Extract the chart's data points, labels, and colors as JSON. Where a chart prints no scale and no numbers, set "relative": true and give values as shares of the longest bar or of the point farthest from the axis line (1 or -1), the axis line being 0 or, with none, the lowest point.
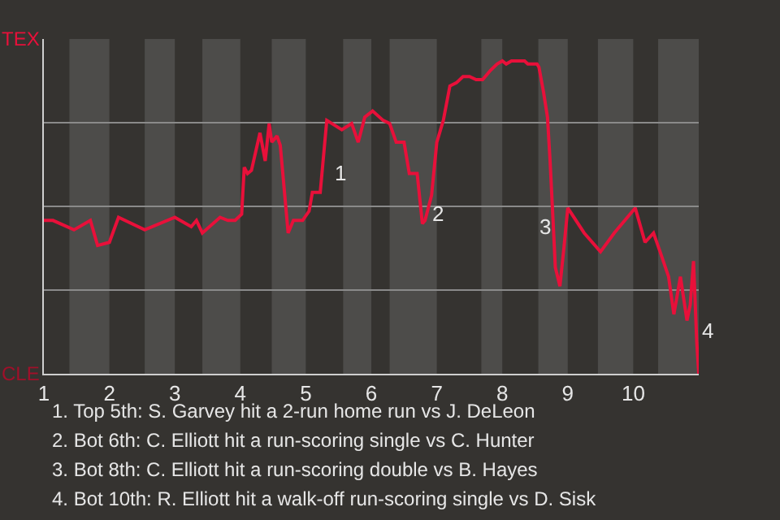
{
  "chart_data": {
    "type": "line",
    "relative": true,
    "x": [
      1.0,
      1.14,
      1.46,
      1.71,
      1.82,
      2.0,
      2.14,
      2.54,
      3.0,
      3.25,
      3.33,
      3.42,
      3.69,
      3.81,
      3.92,
      4.02,
      4.06,
      4.11,
      4.17,
      4.3,
      4.38,
      4.44,
      4.48,
      4.56,
      4.61,
      4.73,
      4.81,
      4.95,
      5.05,
      5.1,
      5.22,
      5.32,
      5.55,
      5.7,
      5.8,
      5.9,
      6.02,
      6.18,
      6.28,
      6.38,
      6.5,
      6.58,
      6.7,
      6.78,
      6.82,
      6.92,
      7.0,
      7.1,
      7.2,
      7.3,
      7.4,
      7.5,
      7.6,
      7.7,
      7.82,
      7.92,
      8.0,
      8.06,
      8.14,
      8.34,
      8.39,
      8.47,
      8.53,
      8.56,
      8.63,
      8.69,
      8.73,
      8.78,
      8.81,
      8.88,
      8.94,
      9.0,
      9.25,
      9.5,
      9.71,
      10.03,
      10.18,
      10.31,
      10.41,
      10.54,
      10.62,
      10.72,
      10.82,
      10.87,
      10.92,
      10.97,
      11.0
    ],
    "series": [
      {
        "color": "#e8103a",
        "values": [
          0.49,
          0.49,
          0.46,
          0.49,
          0.41,
          0.42,
          0.5,
          0.46,
          0.5,
          0.47,
          0.49,
          0.45,
          0.5,
          0.49,
          0.49,
          0.51,
          0.66,
          0.64,
          0.65,
          0.77,
          0.68,
          0.8,
          0.74,
          0.76,
          0.73,
          0.45,
          0.49,
          0.49,
          0.52,
          0.58,
          0.58,
          0.81,
          0.78,
          0.8,
          0.74,
          0.82,
          0.84,
          0.81,
          0.8,
          0.74,
          0.74,
          0.64,
          0.64,
          0.48,
          0.49,
          0.57,
          0.74,
          0.81,
          0.92,
          0.93,
          0.95,
          0.95,
          0.94,
          0.94,
          0.97,
          0.99,
          1,
          0.99,
          1,
          1,
          0.99,
          0.99,
          0.99,
          0.98,
          0.9,
          0.82,
          0.68,
          0.47,
          0.34,
          0.28,
          0.4,
          0.53,
          0.45,
          0.39,
          0.45,
          0.53,
          0.42,
          0.45,
          0.39,
          0.31,
          0.19,
          0.31,
          0.17,
          0.22,
          0.36,
          0.1,
          0
        ]
      }
    ],
    "xlim": [
      1,
      11
    ],
    "xticks": [
      1,
      2,
      3,
      4,
      5,
      6,
      7,
      8,
      9,
      10
    ],
    "grid": "y",
    "bands": [
      {
        "axis": "x",
        "from": 1.39,
        "to": 2,
        "color": "#4d4c4a"
      },
      {
        "axis": "x",
        "from": 2.54,
        "to": 3,
        "color": "#4d4c4a"
      },
      {
        "axis": "x",
        "from": 3.42,
        "to": 4,
        "color": "#4d4c4a"
      },
      {
        "axis": "x",
        "from": 4.48,
        "to": 5,
        "color": "#4d4c4a"
      },
      {
        "axis": "x",
        "from": 5.57,
        "to": 6,
        "color": "#4d4c4a"
      },
      {
        "axis": "x",
        "from": 6.28,
        "to": 7,
        "color": "#4d4c4a"
      },
      {
        "axis": "x",
        "from": 7.68,
        "to": 8,
        "color": "#4d4c4a"
      },
      {
        "axis": "x",
        "from": 8.55,
        "to": 9,
        "color": "#4d4c4a"
      },
      {
        "axis": "x",
        "from": 9.46,
        "to": 10,
        "color": "#4d4c4a"
      },
      {
        "axis": "x",
        "from": 10.38,
        "to": 11,
        "color": "#4d4c4a"
      }
    ],
    "annotations": [
      "TEX",
      "CLE",
      {
        "text": "1",
        "x": 5.4,
        "y": 0.64
      },
      {
        "text": "2",
        "x": 6.88,
        "y": 0.51
      },
      {
        "text": "3",
        "x": 8.52,
        "y": 0.47
      },
      {
        "text": "4",
        "x": 11,
        "y": 0.14
      },
      "1. Top 5th: S. Garvey hit a 2-run home run vs J. DeLeon",
      "2. Bot 6th: C. Elliott hit a run-scoring single vs C. Hunter",
      "3. Bot 8th: C. Elliott hit a run-scoring double vs B. Hayes",
      "4. Bot 10th: R. Elliott hit a walk-off run-scoring single vs D. Sisk"
    ]
  }
}
